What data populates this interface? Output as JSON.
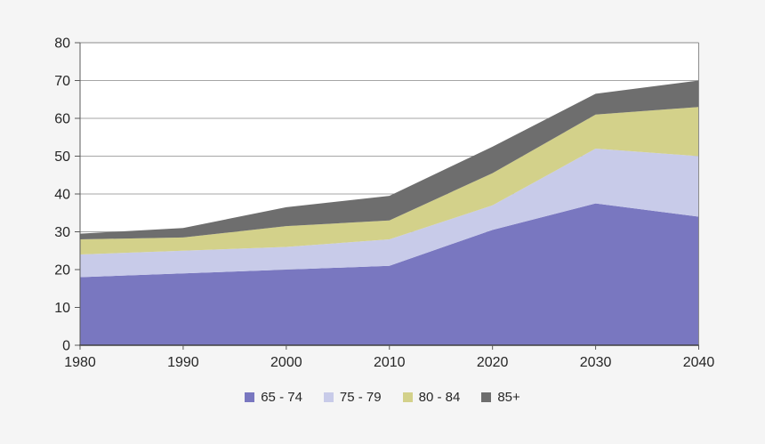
{
  "chart_data": {
    "type": "area",
    "stacked": true,
    "title": "",
    "xlabel": "",
    "ylabel": "",
    "x": [
      1980,
      1990,
      2000,
      2010,
      2020,
      2030,
      2040
    ],
    "series": [
      {
        "name": "65 - 74",
        "color": "#7977C0",
        "values": [
          18,
          19,
          20,
          21,
          30.5,
          37.5,
          34
        ]
      },
      {
        "name": "75 - 79",
        "color": "#C8CBE9",
        "values": [
          6,
          6,
          6,
          7,
          6.5,
          14.5,
          16
        ]
      },
      {
        "name": "80 - 84",
        "color": "#D3D18A",
        "values": [
          4,
          3.5,
          5.5,
          5,
          8.5,
          9,
          13
        ]
      },
      {
        "name": "85+",
        "color": "#6E6E6E",
        "values": [
          1.5,
          2.5,
          5,
          6.5,
          7,
          5.5,
          7
        ]
      }
    ],
    "cumulative_tops": {
      "65 - 74": [
        18,
        19,
        20,
        21,
        30.5,
        37.5,
        34
      ],
      "75 - 79": [
        24,
        25,
        26,
        28,
        37,
        52,
        50
      ],
      "80 - 84": [
        28,
        28.5,
        31.5,
        33,
        45.5,
        61,
        63
      ],
      "85+": [
        29.5,
        31,
        36.5,
        39.5,
        52.5,
        66.5,
        70
      ]
    },
    "ylim": [
      0,
      80
    ],
    "ytick_step": 10,
    "yticks": [
      0,
      10,
      20,
      30,
      40,
      50,
      60,
      70,
      80
    ],
    "grid": true,
    "legend_position": "bottom"
  },
  "colors": {
    "background": "#F5F5F5",
    "plot_background": "#FFFFFF",
    "gridline": "#A6A6A6",
    "plot_border": "#8C8C8C",
    "axis_line_left": "#595959",
    "axis_line_bottom": "#404040",
    "tick": "#595959",
    "text": "#262626"
  }
}
